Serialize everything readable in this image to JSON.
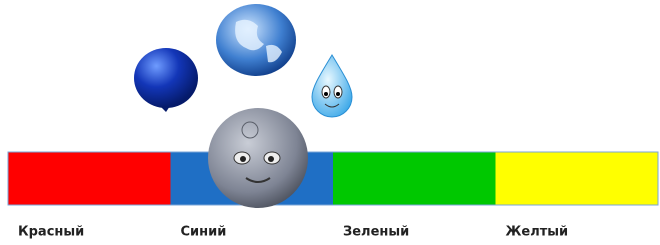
{
  "segments": [
    {
      "label": "Красный",
      "color": "#ff0000"
    },
    {
      "label": "Синий",
      "color": "#1f6fc5"
    },
    {
      "label": "Зеленый",
      "color": "#00c800"
    },
    {
      "label": "Желтый",
      "color": "#ffff00"
    }
  ]
}
